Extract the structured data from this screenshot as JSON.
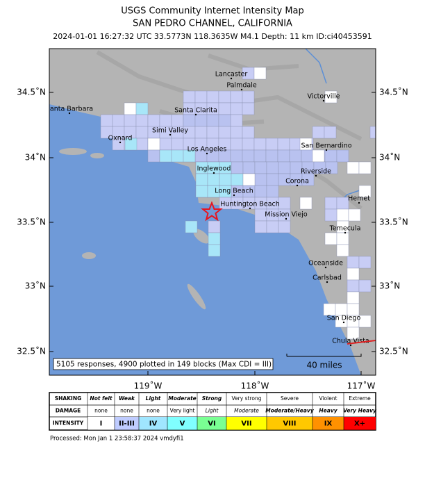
{
  "header": {
    "title": "USGS Community Internet Intensity Map",
    "subtitle": "SAN PEDRO CHANNEL, CALIFORNIA",
    "info": "2024-01-01 16:27:32 UTC 33.5773N 118.3635W M4.1 Depth: 11 km ID:ci40453591"
  },
  "map": {
    "lat_labels": [
      "34.5˚N",
      "34˚N",
      "33.5˚N",
      "33˚N",
      "32.5˚N"
    ],
    "lon_labels": [
      "119˚W",
      "118˚W",
      "117˚W"
    ],
    "places": [
      "Lancaster",
      "Palmdale",
      "Victorville",
      "Santa Barbara",
      "Santa Clarita",
      "Simi Valley",
      "Oxnard",
      "Los Angeles",
      "San Bernardino",
      "Inglewood",
      "Riverside",
      "Corona",
      "Long Beach",
      "Hemet",
      "Huntington Beach",
      "Mission Viejo",
      "Temecula",
      "Oceanside",
      "Carlsbad",
      "San Diego",
      "Chula Vista"
    ],
    "responses": "5105 responses, 4900 plotted in 149 blocks (Max CDI = III)",
    "scale": "40 miles"
  },
  "legend": {
    "row_labels": [
      "SHAKING",
      "DAMAGE",
      "INTENSITY"
    ],
    "shaking": [
      "Not felt",
      "Weak",
      "Light",
      "Moderate",
      "Strong",
      "Very strong",
      "Severe",
      "Violent",
      "Extreme"
    ],
    "damage": [
      "none",
      "none",
      "none",
      "Very light",
      "Light",
      "Moderate",
      "Moderate/Heavy",
      "Heavy",
      "Very Heavy"
    ],
    "intensity": [
      "I",
      "II-III",
      "IV",
      "V",
      "VI",
      "VII",
      "VIII",
      "IX",
      "X+"
    ]
  },
  "footer": "Processed: Mon Jan  1 23:58:37 2024 vmdyfi1"
}
